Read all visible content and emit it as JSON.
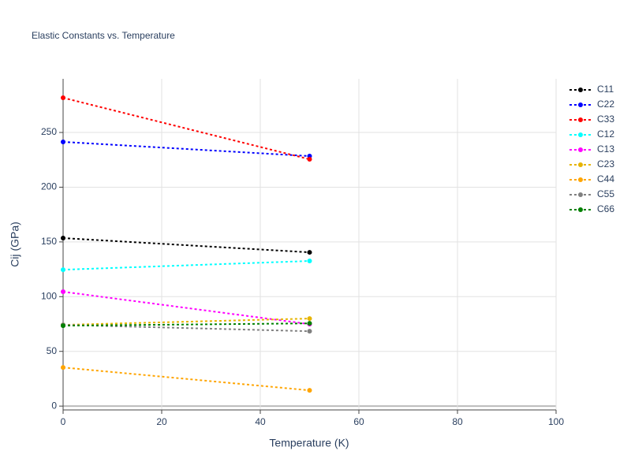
{
  "chart_data": {
    "type": "line",
    "title": "Elastic Constants vs. Temperature",
    "x_label": "Temperature (K)",
    "y_label": "Cij (GPa)",
    "x": [
      0,
      50
    ],
    "series": [
      {
        "name": "C11",
        "color": "#000000",
        "values": [
          153.5,
          140.5
        ]
      },
      {
        "name": "C22",
        "color": "#0000ff",
        "values": [
          241.4,
          228.4
        ]
      },
      {
        "name": "C33",
        "color": "#ff0000",
        "values": [
          281.7,
          225.5
        ]
      },
      {
        "name": "C12",
        "color": "#00ffff",
        "values": [
          124.6,
          132.6
        ]
      },
      {
        "name": "C13",
        "color": "#ff00ff",
        "values": [
          104.5,
          74.9
        ]
      },
      {
        "name": "C23",
        "color": "#e6b400",
        "values": [
          74.2,
          80.0
        ]
      },
      {
        "name": "C44",
        "color": "#ffa500",
        "values": [
          35.3,
          14.4
        ]
      },
      {
        "name": "C55",
        "color": "#808080",
        "values": [
          74.2,
          68.4
        ]
      },
      {
        "name": "C66",
        "color": "#008000",
        "values": [
          73.5,
          75.6
        ]
      }
    ],
    "xlim": [
      0,
      100
    ],
    "xticks": [
      0,
      20,
      40,
      60,
      80,
      100
    ],
    "ylim": [
      -3.5,
      299
    ],
    "yticks": [
      0,
      50,
      100,
      150,
      200,
      250
    ],
    "grid": true,
    "legend": "right",
    "line_style": "dotted"
  }
}
